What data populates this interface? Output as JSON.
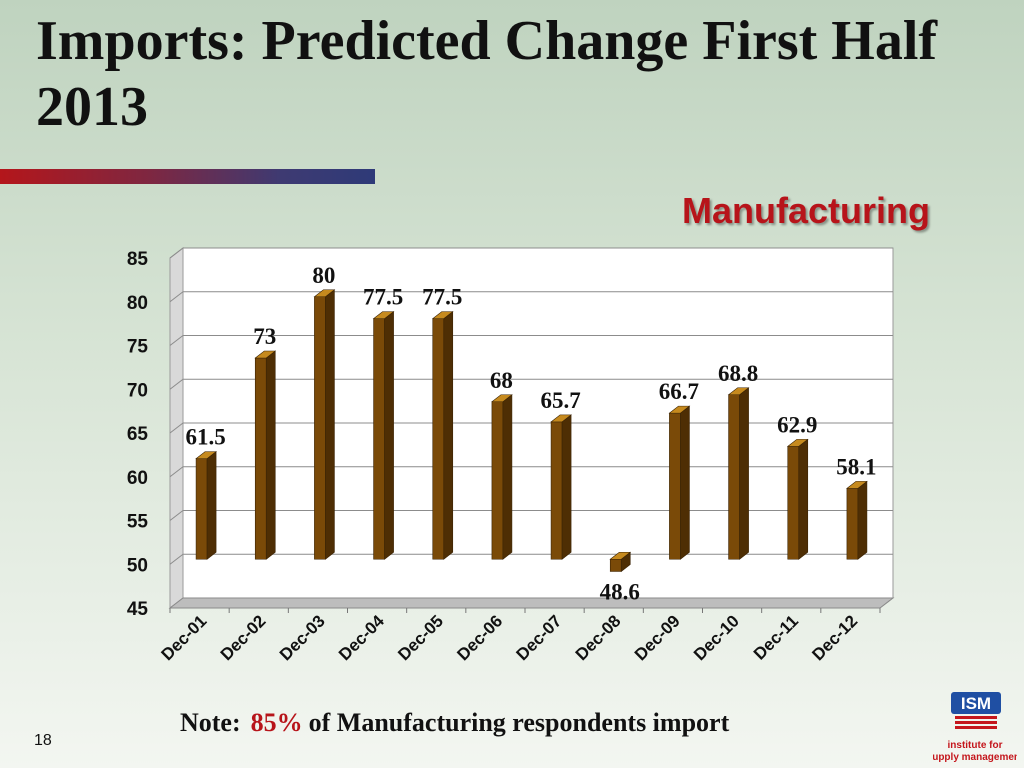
{
  "title": "Imports: Predicted Change First Half 2013",
  "chart_heading": "Manufacturing",
  "note": {
    "prefix": "Note:",
    "percent": "85%",
    "suffix": "of Manufacturing respondents import"
  },
  "page_number": "18",
  "logo": {
    "brand": "ISM",
    "tagline_1": "institute for",
    "tagline_2": "supply management"
  },
  "colors": {
    "bar_front": "#7a4a08",
    "bar_top": "#c68a1e",
    "accent_red": "#b7141a",
    "logo_blue": "#1f4fa3"
  },
  "chart_data": {
    "type": "bar",
    "categories": [
      "Dec-01",
      "Dec-02",
      "Dec-03",
      "Dec-04",
      "Dec-05",
      "Dec-06",
      "Dec-07",
      "Dec-08",
      "Dec-09",
      "Dec-10",
      "Dec-11",
      "Dec-12"
    ],
    "values": [
      61.5,
      73,
      80,
      77.5,
      77.5,
      68,
      65.7,
      48.6,
      66.7,
      68.8,
      62.9,
      58.1
    ],
    "ylim": [
      45,
      85
    ],
    "yticks": [
      45,
      50,
      55,
      60,
      65,
      70,
      75,
      80,
      85
    ],
    "baseline": 50,
    "grid": true,
    "data_labels": [
      "61.5",
      "73",
      "80",
      "77.5",
      "77.5",
      "68",
      "65.7",
      "48.6",
      "66.7",
      "68.8",
      "62.9",
      "58.1"
    ]
  }
}
